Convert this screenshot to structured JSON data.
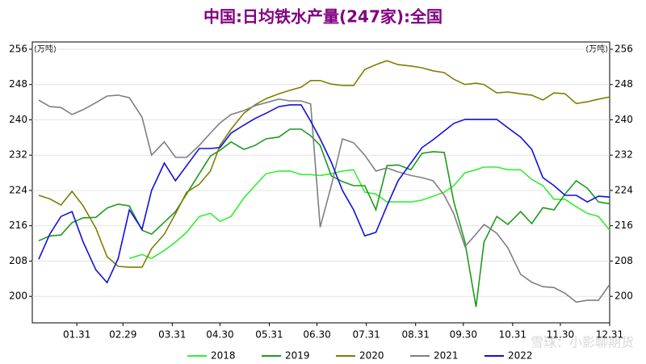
{
  "chart_data": {
    "type": "line",
    "title": "中国:日均铁水产量(247家):全国",
    "y_unit": "(万吨)",
    "y2_unit": "(万吨)",
    "watermark": "雪球：小影聊期货",
    "x": [
      7,
      14,
      21,
      28,
      35,
      43,
      50,
      57,
      64,
      72,
      78,
      86,
      93,
      100,
      108,
      115,
      121,
      128,
      136,
      143,
      150,
      158,
      165,
      172,
      178,
      184,
      191,
      198,
      205,
      212,
      219,
      226,
      233,
      241,
      248,
      255,
      262,
      268,
      275,
      282,
      287,
      295,
      302,
      310,
      317,
      324,
      331,
      338,
      345,
      352,
      359,
      366
    ],
    "xlim": [
      3,
      366
    ],
    "xticks": [
      {
        "value": 31,
        "label": "01.31"
      },
      {
        "value": 60,
        "label": "02.29"
      },
      {
        "value": 91,
        "label": "03.31"
      },
      {
        "value": 121,
        "label": "04.30"
      },
      {
        "value": 152,
        "label": "05.31"
      },
      {
        "value": 182,
        "label": "06.30"
      },
      {
        "value": 213,
        "label": "07.31"
      },
      {
        "value": 244,
        "label": "08.31"
      },
      {
        "value": 274,
        "label": "09.30"
      },
      {
        "value": 305,
        "label": "10.31"
      },
      {
        "value": 335,
        "label": "11.30"
      },
      {
        "value": 366,
        "label": "12.31"
      }
    ],
    "ylim": [
      194,
      256
    ],
    "yticks": [
      200,
      208,
      216,
      224,
      232,
      240,
      248,
      256
    ],
    "y2lim": [
      194,
      256
    ],
    "y2ticks": [
      200,
      208,
      216,
      224,
      232,
      240,
      248,
      256
    ],
    "grid": true,
    "series": [
      {
        "name": "2018",
        "color": "#33ee33",
        "values": [
          null,
          null,
          null,
          null,
          null,
          null,
          null,
          null,
          208.6,
          209.5,
          208.6,
          210.4,
          212.3,
          214.5,
          218.1,
          218.8,
          217.0,
          218.1,
          222.3,
          225.1,
          227.8,
          228.4,
          228.4,
          227.6,
          227.6,
          227.4,
          227.8,
          228.4,
          228.7,
          223.6,
          223.2,
          221.4,
          221.4,
          221.4,
          221.8,
          222.7,
          223.6,
          225.1,
          228.0,
          228.7,
          229.3,
          229.3,
          228.7,
          228.7,
          226.5,
          225.1,
          222.0,
          222.0,
          220.3,
          218.8,
          218.1,
          215.0
        ]
      },
      {
        "name": "2019",
        "color": "#1e9a1e",
        "values": [
          212.6,
          213.7,
          213.9,
          216.7,
          217.8,
          217.9,
          220.0,
          220.9,
          220.5,
          215.0,
          214.1,
          216.8,
          219.2,
          223.2,
          227.8,
          231.8,
          233.1,
          235.0,
          233.3,
          234.2,
          235.7,
          236.1,
          237.9,
          237.9,
          236.4,
          234.2,
          227.3,
          226.0,
          225.1,
          225.1,
          219.6,
          229.6,
          229.8,
          228.7,
          232.4,
          232.8,
          232.6,
          221.4,
          212.3,
          197.6,
          212.3,
          218.1,
          216.3,
          219.2,
          216.5,
          220.1,
          219.6,
          223.2,
          226.2,
          224.5,
          221.4,
          221.0
        ]
      },
      {
        "name": "2020",
        "color": "#7f7f00",
        "values": [
          222.9,
          222.1,
          220.7,
          223.8,
          220.5,
          215.4,
          209.0,
          206.8,
          206.6,
          206.6,
          210.8,
          214.1,
          218.7,
          223.6,
          225.4,
          228.4,
          234.2,
          237.9,
          241.5,
          243.4,
          244.8,
          245.9,
          246.7,
          247.4,
          248.9,
          248.9,
          248.1,
          247.8,
          247.8,
          251.4,
          252.5,
          253.4,
          252.5,
          252.2,
          251.8,
          251.1,
          250.7,
          249.2,
          248.0,
          248.3,
          248.0,
          246.1,
          246.3,
          245.9,
          245.6,
          244.5,
          246.1,
          245.9,
          243.7,
          244.1,
          244.7,
          245.2
        ]
      },
      {
        "name": "2021",
        "color": "#7f7f7f",
        "values": [
          244.5,
          243.0,
          242.8,
          241.2,
          242.3,
          243.9,
          245.4,
          245.6,
          245.0,
          240.6,
          232.0,
          235.0,
          231.5,
          231.5,
          234.2,
          237.0,
          239.3,
          241.2,
          242.1,
          243.2,
          243.9,
          244.7,
          244.3,
          244.3,
          243.6,
          215.7,
          225.1,
          235.7,
          234.8,
          232.0,
          228.4,
          229.1,
          228.2,
          227.4,
          226.9,
          226.2,
          222.9,
          218.7,
          211.3,
          214.1,
          216.3,
          214.3,
          211.0,
          205.0,
          203.2,
          202.2,
          202.0,
          200.7,
          198.7,
          199.1,
          199.1,
          202.7
        ]
      },
      {
        "name": "2022",
        "color": "#1010e0",
        "values": [
          208.4,
          214.1,
          218.1,
          219.2,
          212.3,
          206.0,
          203.1,
          208.6,
          219.6,
          215.2,
          224.0,
          230.2,
          226.2,
          229.6,
          233.5,
          233.5,
          233.7,
          237.0,
          238.8,
          240.3,
          241.5,
          243.0,
          243.4,
          243.4,
          239.7,
          235.7,
          230.4,
          224.0,
          219.6,
          213.7,
          214.5,
          220.5,
          226.2,
          230.2,
          233.7,
          235.5,
          237.5,
          239.2,
          240.1,
          240.1,
          240.1,
          240.1,
          238.2,
          236.1,
          233.3,
          226.9,
          225.1,
          222.9,
          222.9,
          221.4,
          222.7,
          222.5
        ]
      }
    ]
  }
}
